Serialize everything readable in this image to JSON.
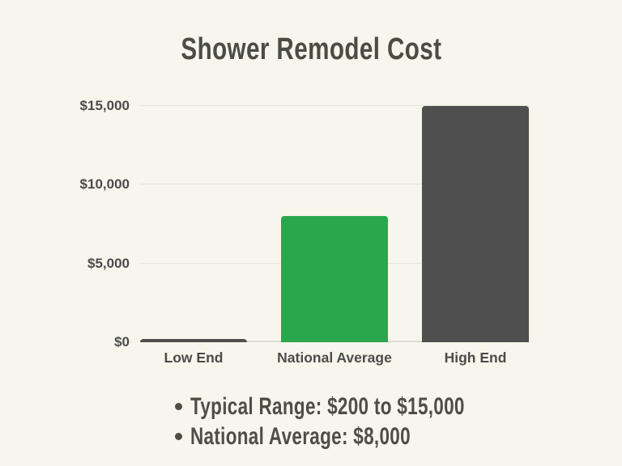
{
  "chart": {
    "title": "Shower Remodel Cost"
  },
  "chart_data": {
    "type": "bar",
    "title": "Shower Remodel Cost",
    "categories": [
      "Low End",
      "National Average",
      "High End"
    ],
    "values": [
      200,
      8000,
      15000
    ],
    "bar_colors": [
      "#4f4f4f",
      "#2aa74b",
      "#4f4f4f"
    ],
    "xlabel": "",
    "ylabel": "",
    "ylim": [
      0,
      15000
    ],
    "yticks": [
      0,
      5000,
      10000,
      15000
    ],
    "ytick_labels": [
      "$0",
      "$5,000",
      "$10,000",
      "$15,000"
    ],
    "grid": true,
    "legend": false,
    "annotations": [
      "Typical Range: $200 to $15,000",
      "National Average: $8,000"
    ]
  },
  "notes": {
    "items": [
      "Typical Range: $200 to $15,000",
      "National Average: $8,000"
    ]
  },
  "colors": {
    "background": "#f7f6ec",
    "accent_green": "#2aa74b",
    "dark_gray": "#4f4f4f",
    "text": "#4e4e48",
    "tick_text": "#4b4b4b",
    "gridline": "#e6e5dc"
  }
}
